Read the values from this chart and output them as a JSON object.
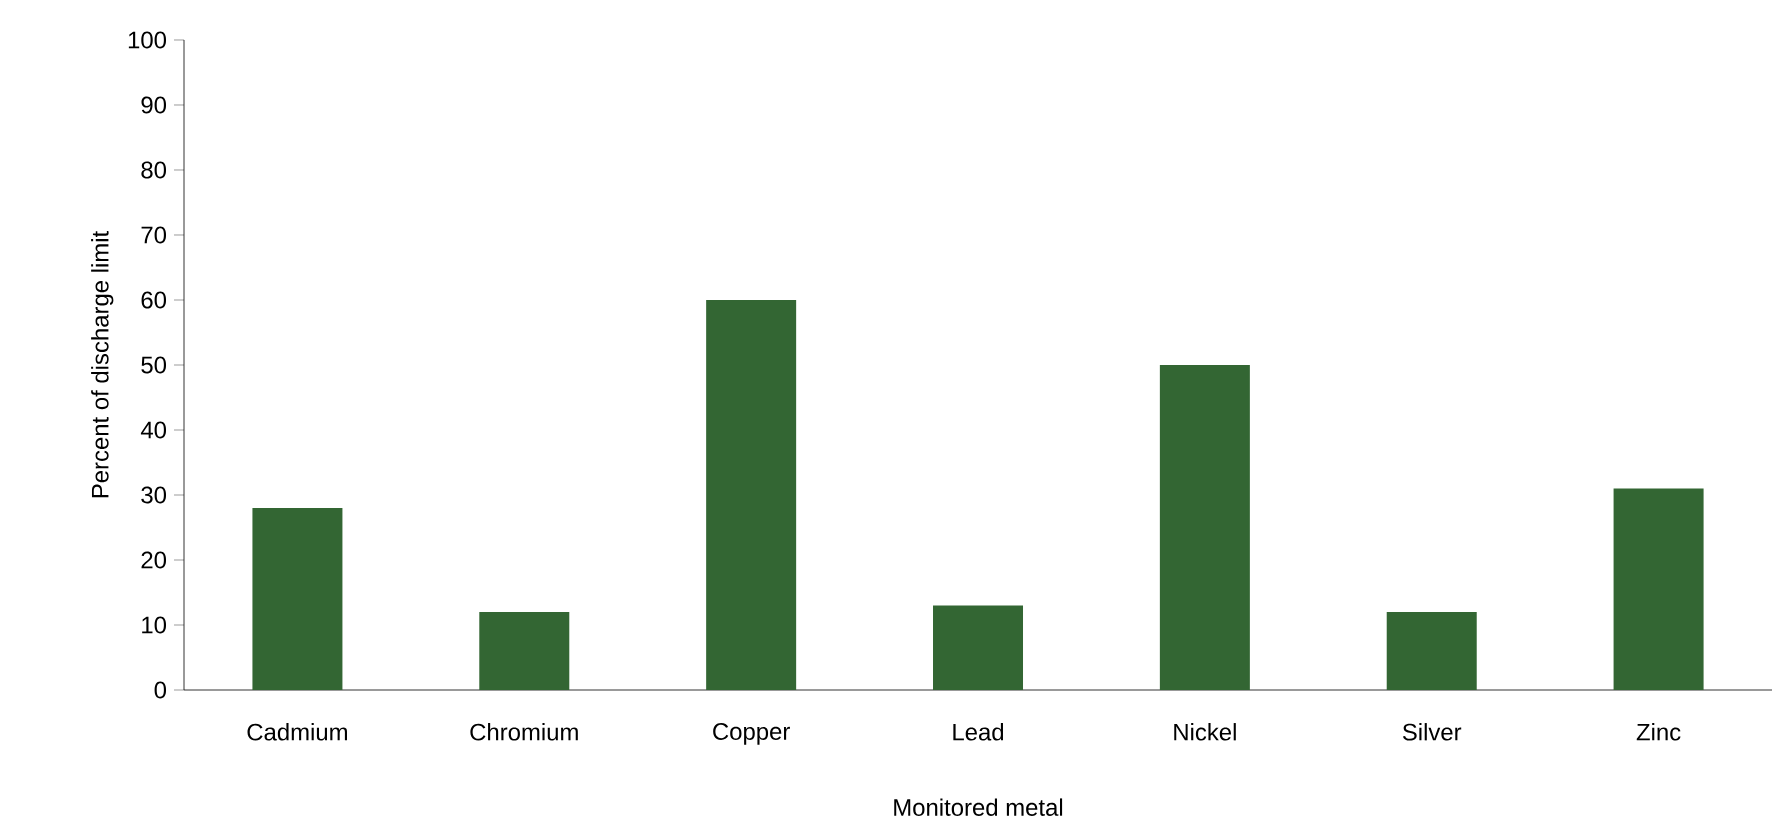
{
  "chart_data": {
    "type": "bar",
    "xlabel": "Monitored metal",
    "ylabel": "Percent of discharge limit",
    "categories": [
      "Cadmium",
      "Chromium",
      "Copper",
      "Lead",
      "Nickel",
      "Silver",
      "Zinc"
    ],
    "values": [
      28,
      12,
      60,
      13,
      50,
      12,
      31
    ],
    "color": "#336633",
    "ylim": [
      0,
      100
    ],
    "yticks": [
      0,
      10,
      20,
      30,
      40,
      50,
      60,
      70,
      80,
      90,
      100
    ],
    "grid": false
  }
}
